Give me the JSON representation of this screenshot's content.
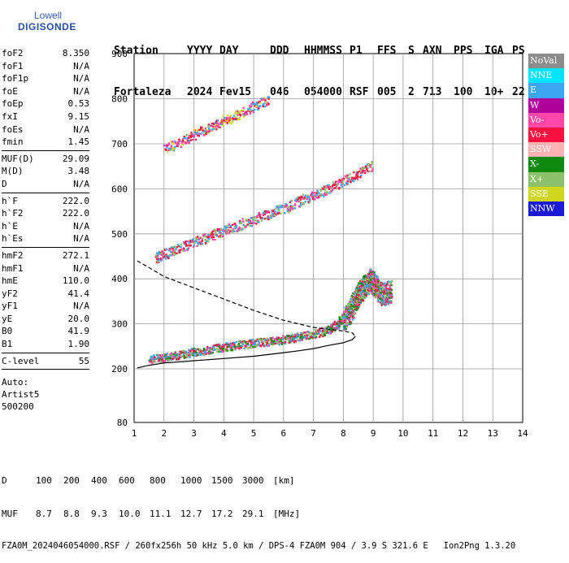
{
  "logo": {
    "line1": "Lowell",
    "line2": "DIGISONDE"
  },
  "header": {
    "labels": [
      "Station",
      "YYYY",
      "DAY",
      "DDD",
      "HHMMSS",
      "P1",
      "FFS",
      "S",
      "AXN",
      "PPS",
      "IGA",
      "PS"
    ],
    "values": [
      "Fortaleza",
      "2024",
      "Fev15",
      "046",
      "054000",
      "RSF",
      "005",
      "2",
      "713",
      "100",
      "10+",
      "22"
    ]
  },
  "params": [
    {
      "group": [
        {
          "name": "foF2",
          "value": "8.350"
        },
        {
          "name": "foF1",
          "value": "N/A"
        },
        {
          "name": "foF1p",
          "value": "N/A"
        },
        {
          "name": "foE",
          "value": "N/A"
        },
        {
          "name": "foEp",
          "value": "0.53"
        },
        {
          "name": "fxI",
          "value": "9.15"
        },
        {
          "name": "foEs",
          "value": "N/A"
        },
        {
          "name": "fmin",
          "value": "1.45"
        }
      ]
    },
    {
      "group": [
        {
          "name": "MUF(D)",
          "value": "29.09"
        },
        {
          "name": "M(D)",
          "value": "3.48"
        },
        {
          "name": "D",
          "value": "N/A"
        }
      ]
    },
    {
      "group": [
        {
          "name": "h`F",
          "value": "222.0"
        },
        {
          "name": "h`F2",
          "value": "222.0"
        },
        {
          "name": "h`E",
          "value": "N/A"
        },
        {
          "name": "h`Es",
          "value": "N/A"
        }
      ]
    },
    {
      "group": [
        {
          "name": "hmF2",
          "value": "272.1"
        },
        {
          "name": "hmF1",
          "value": "N/A"
        },
        {
          "name": "hmE",
          "value": "110.0"
        },
        {
          "name": "yF2",
          "value": "41.4"
        },
        {
          "name": "yF1",
          "value": "N/A"
        },
        {
          "name": "yE",
          "value": "20.0"
        },
        {
          "name": "B0",
          "value": "41.9"
        },
        {
          "name": "B1",
          "value": "1.90"
        }
      ]
    },
    {
      "group": [
        {
          "name": "C-level",
          "value": "55"
        }
      ]
    }
  ],
  "autoscale": [
    "Auto:",
    "Artist5",
    "500200"
  ],
  "legend": [
    {
      "label": "NoVal",
      "color": "#8c8c8c"
    },
    {
      "label": "NNE",
      "color": "#00e5ff"
    },
    {
      "label": "E",
      "color": "#3da6f2"
    },
    {
      "label": "W",
      "color": "#b0009c"
    },
    {
      "label": "Vo-",
      "color": "#ff47a8"
    },
    {
      "label": "Vo+",
      "color": "#ff1040"
    },
    {
      "label": "SSW",
      "color": "#ffb3b3"
    },
    {
      "label": "X-",
      "color": "#0f8a0f"
    },
    {
      "label": "X+",
      "color": "#8dc06a"
    },
    {
      "label": "SSE",
      "color": "#cfd61c"
    },
    {
      "label": "NNW",
      "color": "#1a1ad6"
    }
  ],
  "footer": {
    "d_label": "D",
    "d_values": [
      "100",
      "200",
      "400",
      "600",
      "800",
      "1000",
      "1500",
      "3000"
    ],
    "d_unit": "[km]",
    "muf_label": "MUF",
    "muf_values": [
      "8.7",
      "8.8",
      "9.3",
      "10.0",
      "11.1",
      "12.7",
      "17.2",
      "29.1"
    ],
    "muf_unit": "[MHz]",
    "file_info": "FZA0M_2024046054000.RSF / 260fx256h 50 kHz 5.0 km / DPS-4 FZA0M 904 / 3.9 S 321.6 E   Ion2Png 1.3.20"
  },
  "chart_data": {
    "type": "scatter",
    "title": "",
    "xlabel": "",
    "ylabel": "",
    "xlim": [
      1,
      14
    ],
    "ylim": [
      80,
      900
    ],
    "xticks": [
      "1",
      "2",
      "3",
      "4",
      "5",
      "6",
      "7",
      "8",
      "9",
      "10",
      "11",
      "12",
      "13",
      "14"
    ],
    "yticks": [
      "80",
      "200",
      "300",
      "400",
      "500",
      "600",
      "700",
      "800",
      "900"
    ],
    "grid": true,
    "traces": [
      {
        "label": "F2 trace (1st hop)",
        "color_mix": [
          "#ff1040",
          "#ff47a8",
          "#8dc06a",
          "#0f8a0f",
          "#3da6f2"
        ],
        "points": [
          [
            1.5,
            226
          ],
          [
            2.0,
            230
          ],
          [
            2.5,
            236
          ],
          [
            3.0,
            242
          ],
          [
            3.5,
            248
          ],
          [
            4.0,
            253
          ],
          [
            4.5,
            258
          ],
          [
            5.0,
            262
          ],
          [
            5.5,
            266
          ],
          [
            6.0,
            270
          ],
          [
            6.5,
            276
          ],
          [
            7.0,
            282
          ],
          [
            7.5,
            292
          ],
          [
            7.8,
            305
          ],
          [
            8.0,
            320
          ],
          [
            8.2,
            340
          ],
          [
            8.4,
            365
          ],
          [
            8.5,
            380
          ],
          [
            8.7,
            395
          ],
          [
            8.9,
            410
          ],
          [
            9.0,
            400
          ],
          [
            9.2,
            380
          ],
          [
            9.4,
            378
          ],
          [
            9.6,
            385
          ]
        ]
      },
      {
        "label": "F2 2nd hop",
        "color_mix": [
          "#ff1040",
          "#ff47a8",
          "#8dc06a",
          "#3da6f2"
        ],
        "points": [
          [
            1.7,
            452
          ],
          [
            2.0,
            460
          ],
          [
            2.5,
            474
          ],
          [
            3.0,
            488
          ],
          [
            3.5,
            500
          ],
          [
            4.0,
            512
          ],
          [
            4.5,
            525
          ],
          [
            5.0,
            538
          ],
          [
            5.5,
            550
          ],
          [
            6.0,
            562
          ],
          [
            6.5,
            578
          ],
          [
            7.0,
            592
          ],
          [
            7.5,
            606
          ],
          [
            8.0,
            622
          ],
          [
            8.5,
            640
          ],
          [
            9.0,
            660
          ]
        ]
      },
      {
        "label": "F2 3rd hop",
        "color_mix": [
          "#ff1040",
          "#ff47a8",
          "#cfd61c",
          "#3da6f2"
        ],
        "points": [
          [
            2.0,
            695
          ],
          [
            2.5,
            710
          ],
          [
            3.0,
            725
          ],
          [
            3.5,
            742
          ],
          [
            4.0,
            758
          ],
          [
            4.5,
            772
          ],
          [
            5.0,
            790
          ],
          [
            5.5,
            805
          ]
        ]
      }
    ],
    "profile_curve": [
      [
        1.1,
        202
      ],
      [
        1.5,
        208
      ],
      [
        2.0,
        213
      ],
      [
        3.0,
        218
      ],
      [
        4.0,
        223
      ],
      [
        5.0,
        228
      ],
      [
        6.0,
        236
      ],
      [
        6.5,
        240
      ],
      [
        7.0,
        245
      ],
      [
        7.5,
        252
      ],
      [
        8.0,
        258
      ],
      [
        8.3,
        265
      ],
      [
        8.4,
        272
      ]
    ],
    "extrapolation_curve": [
      [
        1.1,
        440
      ],
      [
        1.5,
        425
      ],
      [
        2.0,
        405
      ],
      [
        3.0,
        380
      ],
      [
        4.0,
        355
      ],
      [
        5.0,
        330
      ],
      [
        6.0,
        308
      ],
      [
        6.5,
        300
      ],
      [
        7.0,
        292
      ],
      [
        7.5,
        288
      ],
      [
        8.0,
        284
      ],
      [
        8.3,
        280
      ],
      [
        8.4,
        272
      ]
    ]
  }
}
